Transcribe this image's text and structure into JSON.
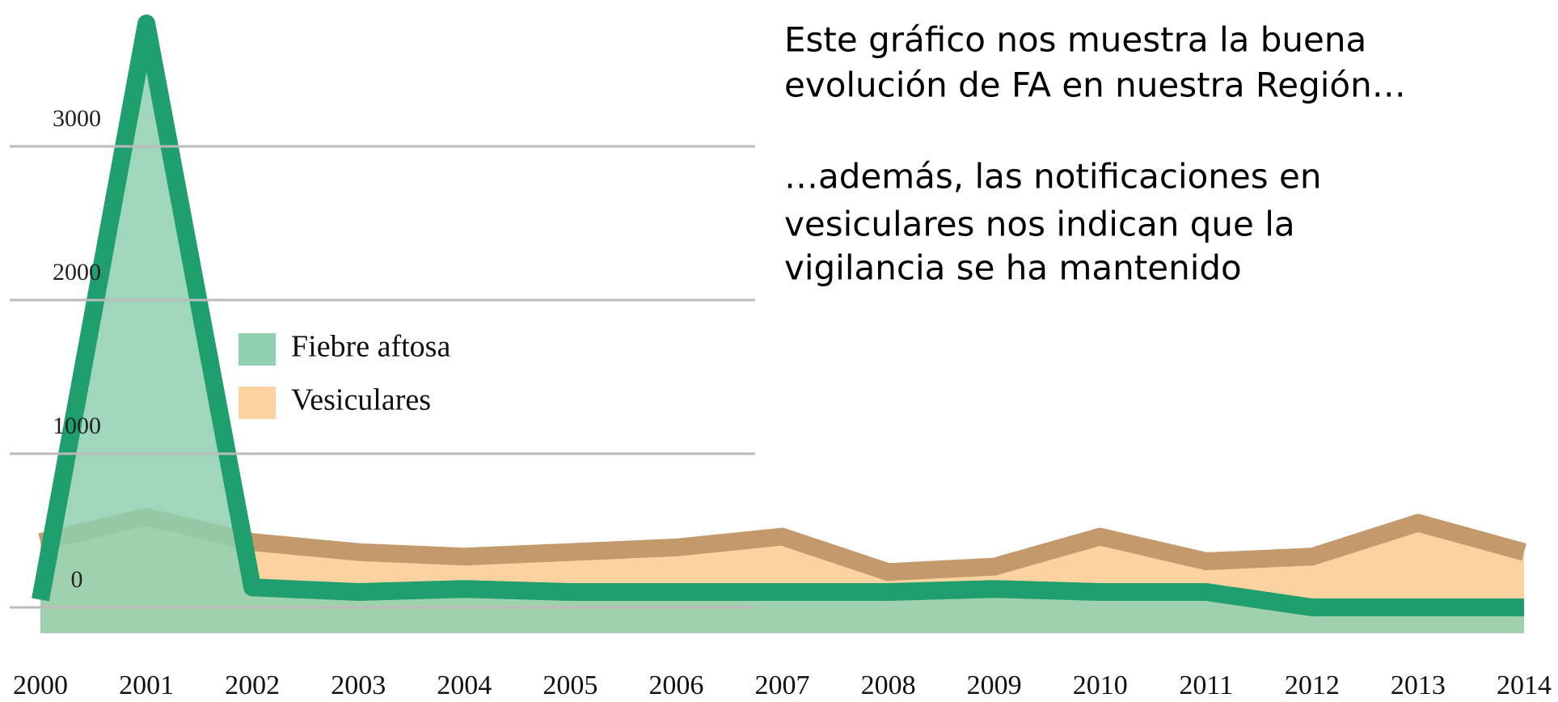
{
  "chart_data": {
    "type": "area",
    "categories": [
      "2000",
      "2001",
      "2002",
      "2003",
      "2004",
      "2005",
      "2006",
      "2007",
      "2008",
      "2009",
      "2010",
      "2011",
      "2012",
      "2013",
      "2014"
    ],
    "series": [
      {
        "name": "Vesiculares",
        "color": "#fcd3a0",
        "edge": "#c49a6c",
        "values": [
          425,
          590,
          425,
          360,
          330,
          360,
          390,
          460,
          230,
          265,
          460,
          300,
          330,
          550,
          360
        ]
      },
      {
        "name": "Fiebre aftosa",
        "color": "#8fd0b0",
        "edge": "#1f9e6e",
        "values": [
          50,
          3800,
          130,
          100,
          120,
          100,
          100,
          100,
          100,
          120,
          100,
          100,
          0,
          0,
          0
        ]
      }
    ],
    "legend_order": [
      1,
      0
    ],
    "ylim": [
      0,
      4000
    ],
    "yticks": [
      0,
      1000,
      2000,
      3000
    ],
    "grid": true,
    "annotations": [
      "Este gráfico nos muestra la buena",
      "evolución de FA en nuestra Región…",
      "…además, las notificaciones en",
      "vesiculares nos indican que la",
      "vigilancia se ha mantenido"
    ]
  }
}
